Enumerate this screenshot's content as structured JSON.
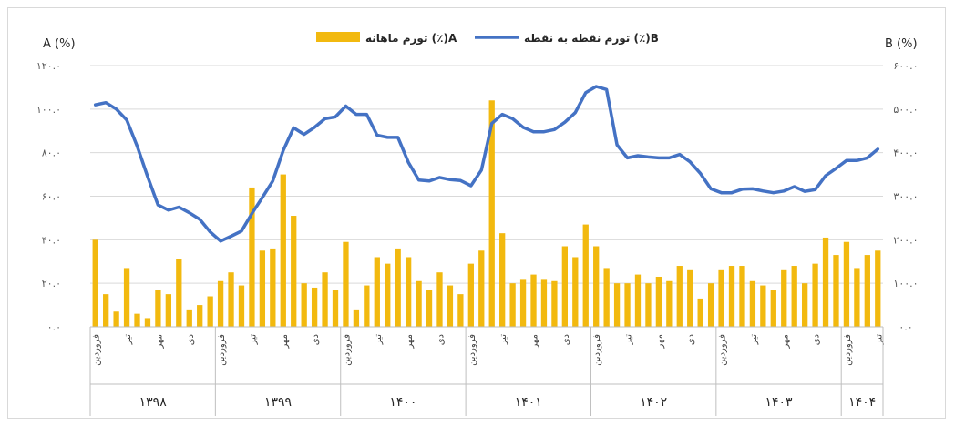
{
  "chart_data": {
    "type": "bar+line",
    "y_left_label": "A (%)",
    "y_right_label": "B (%)",
    "ylim_left": [
      0,
      120
    ],
    "ylim_right": [
      0,
      600
    ],
    "y_left_ticks": [
      "۰.۰",
      "۲۰.۰",
      "۴۰.۰",
      "۶۰.۰",
      "۸۰.۰",
      "۱۰۰.۰",
      "۱۲۰.۰"
    ],
    "y_right_ticks": [
      "۰.۰",
      "۱۰۰.۰",
      "۲۰۰.۰",
      "۳۰۰.۰",
      "۴۰۰.۰",
      "۵۰۰.۰",
      "۶۰۰.۰"
    ],
    "grid": true,
    "legend_position": "top",
    "colors": {
      "bars": "#F2B90F",
      "line": "#4472C4"
    },
    "series": [
      {
        "name": "تورم ماهانه (٪)A",
        "type": "bar",
        "axis": "left",
        "values": [
          40,
          15,
          7,
          27,
          6,
          4,
          17,
          15,
          31,
          8,
          10,
          14,
          21,
          25,
          19,
          64,
          35,
          36,
          70,
          51,
          20,
          18,
          25,
          17,
          39,
          8,
          19,
          32,
          29,
          36,
          32,
          21,
          17,
          25,
          19,
          15,
          29,
          35,
          104,
          43,
          20,
          22,
          24,
          22,
          21,
          37,
          32,
          47,
          37,
          27,
          20,
          20,
          24,
          20,
          23,
          21,
          28,
          26,
          13,
          20,
          26,
          28,
          28,
          21,
          19,
          17,
          26,
          28,
          20,
          29,
          41,
          33,
          39,
          27,
          33,
          35
        ]
      },
      {
        "name": "تورم نقطه به نقطه (٪)B",
        "type": "line",
        "axis": "right",
        "values": [
          510,
          515,
          500,
          475,
          415,
          345,
          280,
          268,
          275,
          262,
          247,
          218,
          197,
          208,
          220,
          260,
          297,
          335,
          405,
          457,
          442,
          458,
          478,
          482,
          507,
          488,
          488,
          440,
          435,
          435,
          378,
          337,
          335,
          343,
          338,
          336,
          324,
          360,
          467,
          488,
          478,
          458,
          448,
          448,
          453,
          470,
          492,
          538,
          552,
          545,
          418,
          388,
          393,
          390,
          388,
          388,
          396,
          379,
          352,
          317,
          308,
          308,
          316,
          317,
          312,
          308,
          312,
          322,
          311,
          315,
          347,
          364,
          382,
          382,
          388,
          408
        ]
      }
    ],
    "x_month_labels": [
      {
        "index": 0,
        "text": "فروردین"
      },
      {
        "index": 3,
        "text": "تیر"
      },
      {
        "index": 6,
        "text": "مهر"
      },
      {
        "index": 9,
        "text": "دی"
      },
      {
        "index": 12,
        "text": "فروردین"
      },
      {
        "index": 15,
        "text": "تیر"
      },
      {
        "index": 18,
        "text": "مهر"
      },
      {
        "index": 21,
        "text": "دی"
      },
      {
        "index": 24,
        "text": "فروردین"
      },
      {
        "index": 27,
        "text": "تیر"
      },
      {
        "index": 30,
        "text": "مهر"
      },
      {
        "index": 33,
        "text": "دی"
      },
      {
        "index": 36,
        "text": "فروردین"
      },
      {
        "index": 39,
        "text": "تیر"
      },
      {
        "index": 42,
        "text": "مهر"
      },
      {
        "index": 45,
        "text": "دی"
      },
      {
        "index": 48,
        "text": "فروردین"
      },
      {
        "index": 51,
        "text": "تیر"
      },
      {
        "index": 54,
        "text": "مهر"
      },
      {
        "index": 57,
        "text": "دی"
      },
      {
        "index": 60,
        "text": "فروردین"
      },
      {
        "index": 63,
        "text": "تیر"
      },
      {
        "index": 66,
        "text": "مهر"
      },
      {
        "index": 69,
        "text": "دی"
      },
      {
        "index": 72,
        "text": "فروردین"
      },
      {
        "index": 75,
        "text": "تیر"
      }
    ],
    "years": [
      {
        "label": "۱۳۹۸",
        "start": 0,
        "count": 12
      },
      {
        "label": "۱۳۹۹",
        "start": 12,
        "count": 12
      },
      {
        "label": "۱۴۰۰",
        "start": 24,
        "count": 12
      },
      {
        "label": "۱۴۰۱",
        "start": 36,
        "count": 12
      },
      {
        "label": "۱۴۰۲",
        "start": 48,
        "count": 12
      },
      {
        "label": "۱۴۰۳",
        "start": 60,
        "count": 12
      },
      {
        "label": "۱۴۰۴",
        "start": 72,
        "count": 4
      }
    ]
  }
}
